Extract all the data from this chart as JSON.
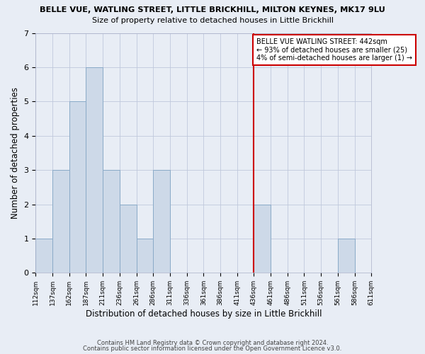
{
  "title1": "BELLE VUE, WATLING STREET, LITTLE BRICKHILL, MILTON KEYNES, MK17 9LU",
  "title2": "Size of property relative to detached houses in Little Brickhill",
  "xlabel": "Distribution of detached houses by size in Little Brickhill",
  "ylabel": "Number of detached properties",
  "footnote1": "Contains HM Land Registry data © Crown copyright and database right 2024.",
  "footnote2": "Contains public sector information licensed under the Open Government Licence v3.0.",
  "bar_heights": [
    1,
    3,
    5,
    6,
    3,
    2,
    1,
    3,
    0,
    0,
    0,
    0,
    0,
    2,
    0,
    0,
    0,
    0,
    1,
    0
  ],
  "bar_color": "#cdd9e8",
  "bar_edge_color": "#8aaac8",
  "grid_color": "#c0c8dc",
  "bg_color": "#e8edf5",
  "red_line_index": 13,
  "red_line_color": "#cc0000",
  "annotation_title": "BELLE VUE WATLING STREET: 442sqm",
  "annotation_line1": "← 93% of detached houses are smaller (25)",
  "annotation_line2": "4% of semi-detached houses are larger (1) →",
  "annotation_box_edge_color": "#cc0000",
  "ylim": [
    0,
    7
  ],
  "yticks": [
    0,
    1,
    2,
    3,
    4,
    5,
    6,
    7
  ],
  "tick_labels": [
    "112sqm",
    "137sqm",
    "162sqm",
    "187sqm",
    "211sqm",
    "236sqm",
    "261sqm",
    "286sqm",
    "311sqm",
    "336sqm",
    "361sqm",
    "386sqm",
    "411sqm",
    "436sqm",
    "461sqm",
    "486sqm",
    "511sqm",
    "536sqm",
    "561sqm",
    "586sqm",
    "611sqm"
  ]
}
